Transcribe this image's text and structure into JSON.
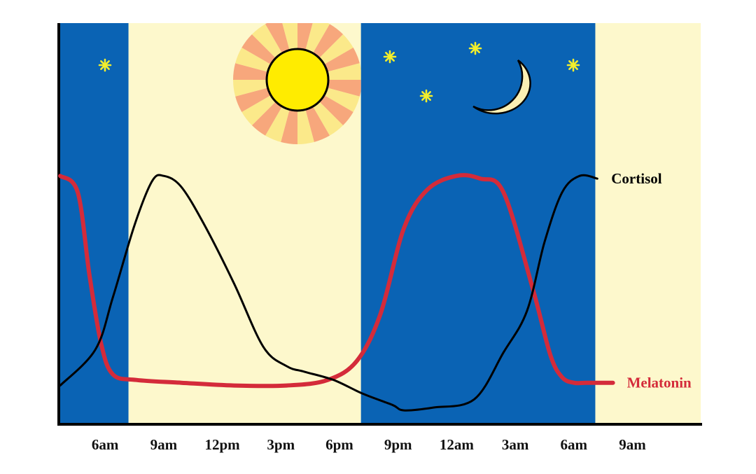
{
  "chart_data": {
    "type": "line",
    "title": "",
    "xlabel": "",
    "ylabel": "",
    "x_ticks": [
      "6am",
      "9am",
      "12pm",
      "3pm",
      "6pm",
      "9pm",
      "12am",
      "3am",
      "6am",
      "9am"
    ],
    "x_range_hours": [
      3.7,
      36.5
    ],
    "y_range": [
      0,
      100
    ],
    "grid": false,
    "legend": "inline labels at right end of each line",
    "shading": [
      {
        "phase": "night",
        "from_hour": 3.7,
        "to_hour": 7.2
      },
      {
        "phase": "day",
        "from_hour": 7.2,
        "to_hour": 19.1
      },
      {
        "phase": "night",
        "from_hour": 19.1,
        "to_hour": 31.1
      },
      {
        "phase": "day",
        "from_hour": 31.1,
        "to_hour": 36.5
      }
    ],
    "decorations": {
      "sun_icon": "sun",
      "moon_icon": "crescent-moon",
      "star_icon": "star",
      "star_count": 5
    },
    "series": [
      {
        "name": "Cortisol",
        "color": "#000000",
        "x": [
          3.7,
          5.5,
          6.4,
          7.5,
          8.4,
          9.0,
          9.9,
          11.1,
          12.6,
          14.1,
          15.3,
          16.2,
          17.7,
          19.2,
          20.7,
          21.3,
          22.8,
          24.9,
          26.4,
          27.6,
          28.5,
          29.4,
          30.3,
          31.2
        ],
        "y": [
          10,
          23,
          42,
          68,
          84,
          86,
          82,
          68,
          47,
          24,
          17,
          15,
          12,
          7,
          3,
          1,
          2,
          5,
          22,
          37,
          62,
          80,
          86,
          85
        ]
      },
      {
        "name": "Melatonin",
        "color": "#d42b3a",
        "x": [
          3.7,
          4.6,
          5.2,
          5.8,
          6.4,
          7.6,
          9.9,
          12.6,
          15.3,
          17.4,
          18.9,
          20.1,
          21.3,
          22.5,
          24.0,
          25.2,
          26.4,
          27.9,
          28.8,
          29.4,
          30.0,
          30.6,
          31.2,
          32.0
        ],
        "y": [
          86,
          80,
          50,
          25,
          14,
          12,
          11,
          10,
          10,
          12,
          19,
          36,
          67,
          81,
          86,
          85,
          80,
          45,
          21,
          13,
          11,
          11,
          11,
          11
        ]
      }
    ]
  }
}
